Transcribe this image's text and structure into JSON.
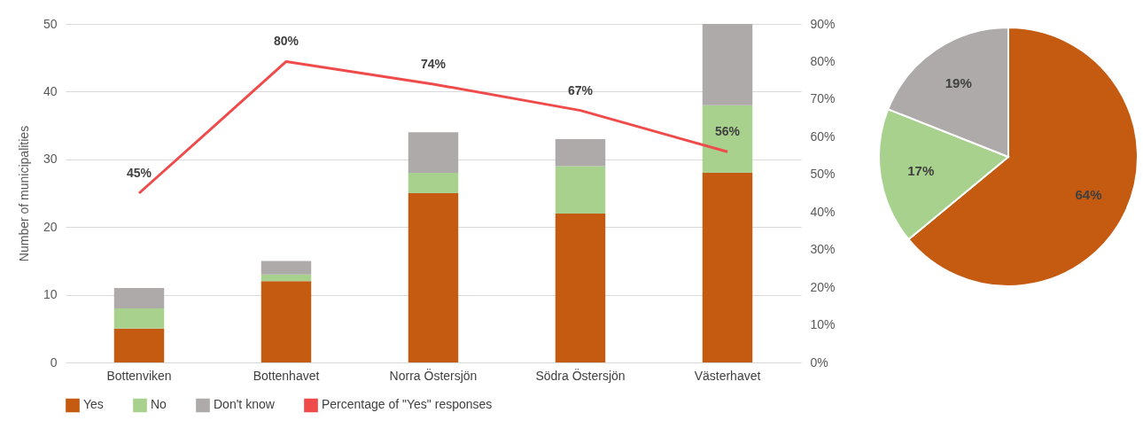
{
  "chart_data": [
    {
      "type": "bar",
      "stacked": true,
      "ylabel": "Number of municipalities",
      "categories": [
        "Bottenviken",
        "Bottenhavet",
        "Norra Östersjön",
        "Södra Östersjön",
        "Västerhavet"
      ],
      "series": [
        {
          "name": "Yes",
          "color": "#c55a11",
          "values": [
            5,
            12,
            25,
            22,
            28
          ]
        },
        {
          "name": "No",
          "color": "#a9d18e",
          "values": [
            3,
            1,
            3,
            7,
            10
          ]
        },
        {
          "name": "Don't know",
          "color": "#aeaaaa",
          "values": [
            3,
            2,
            6,
            4,
            12
          ]
        },
        {
          "name": "Percentage of \"Yes\" responses",
          "type": "line",
          "axis": "y2",
          "color": "#f04b4b",
          "values": [
            45,
            80,
            74,
            67,
            56
          ],
          "value_labels": [
            "45%",
            "80%",
            "74%",
            "67%",
            "56%"
          ]
        }
      ],
      "ylim": [
        0,
        50
      ],
      "yticks": [
        0,
        10,
        20,
        30,
        40,
        50
      ],
      "y2lim": [
        0,
        90
      ],
      "y2ticks": [
        {
          "value": 0,
          "label": "0%"
        },
        {
          "value": 10,
          "label": "10%"
        },
        {
          "value": 20,
          "label": "20%"
        },
        {
          "value": 30,
          "label": "30%"
        },
        {
          "value": 40,
          "label": "40%"
        },
        {
          "value": 50,
          "label": "50%"
        },
        {
          "value": 60,
          "label": "60%"
        },
        {
          "value": 70,
          "label": "70%"
        },
        {
          "value": 80,
          "label": "80%"
        },
        {
          "value": 90,
          "label": "90%"
        }
      ],
      "grid": "y",
      "legend": "bottom",
      "marker": "none"
    },
    {
      "type": "pie",
      "categories": [
        null,
        null,
        null
      ],
      "values": [
        64,
        17,
        19
      ],
      "colors": [
        "#c55a11",
        "#a9d18e",
        "#aeaaaa"
      ],
      "value_labels": [
        "64%",
        "17%",
        "19%"
      ]
    }
  ]
}
